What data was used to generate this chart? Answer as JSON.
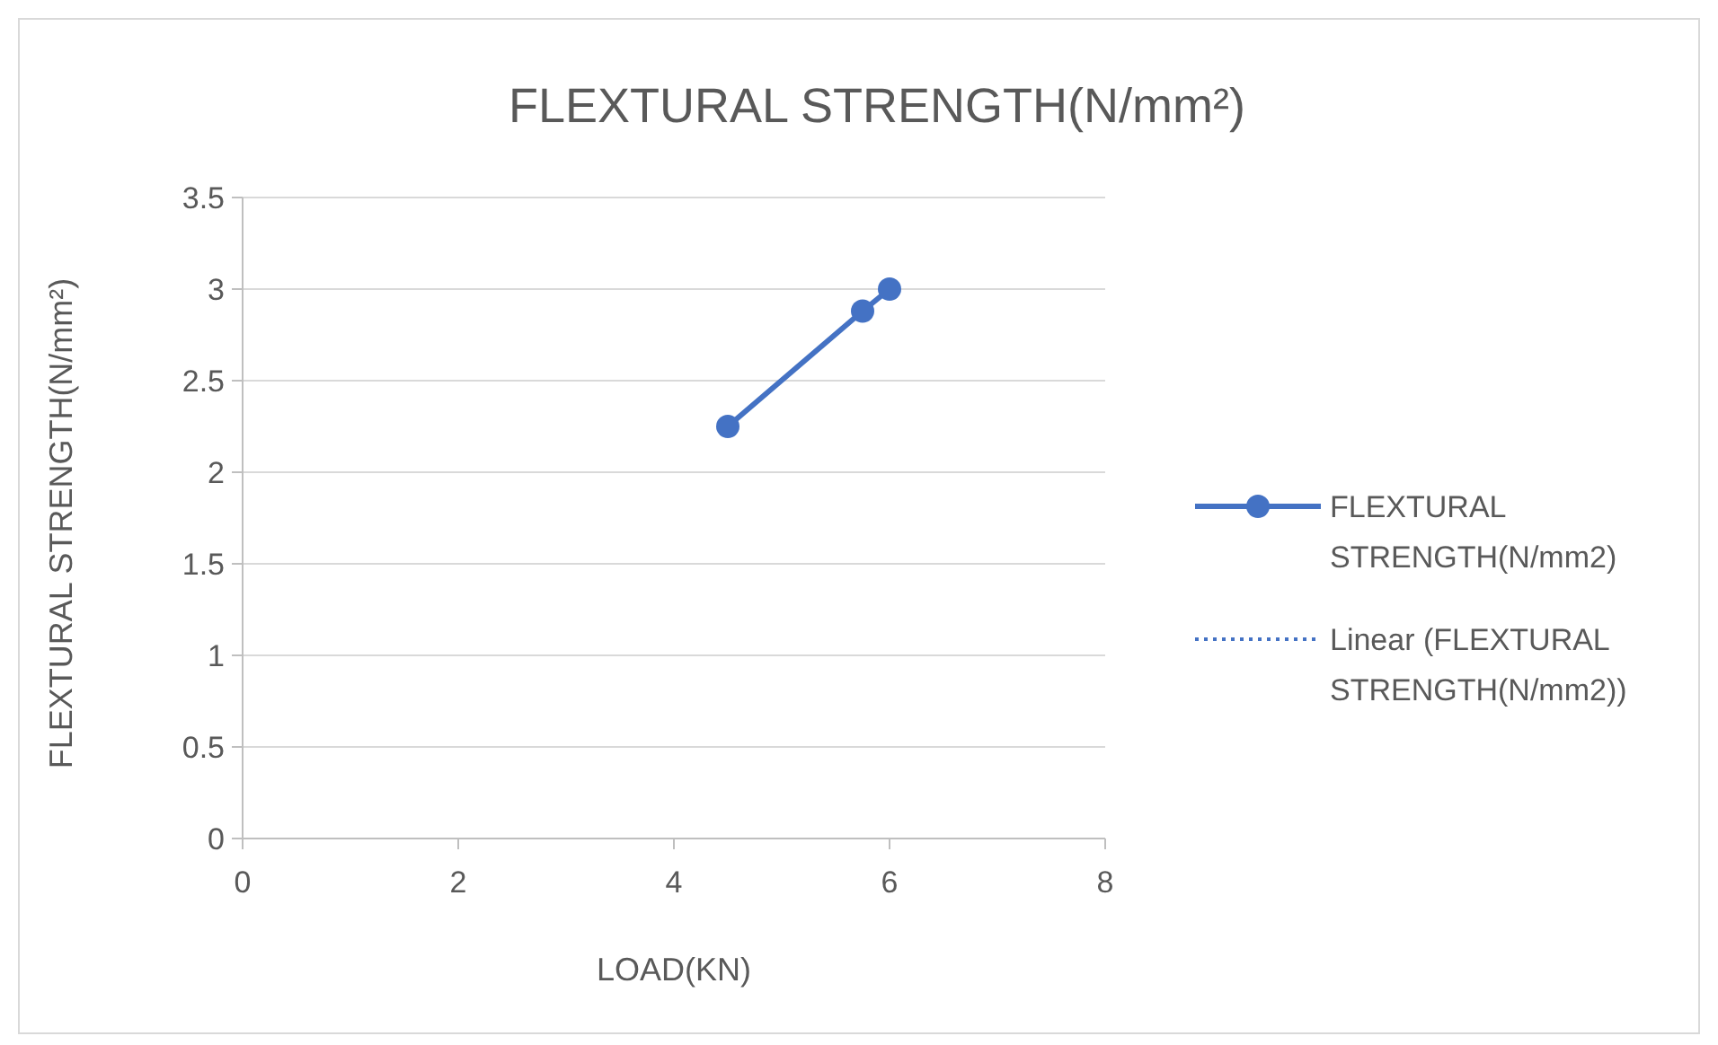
{
  "chart_data": {
    "type": "line",
    "title": "FLEXTURAL STRENGTH(N/mm²)",
    "xlabel": "LOAD(KN)",
    "ylabel": "FLEXTURAL STRENGTH(N/mm²)",
    "series": [
      {
        "name": "FLEXTURAL STRENGTH(N/mm2)",
        "color": "#4472c4",
        "x": [
          4.5,
          5.75,
          6
        ],
        "values": [
          2.25,
          2.88,
          3
        ],
        "marker": "circle",
        "line_style": "solid"
      },
      {
        "name": "Linear (FLEXTURAL STRENGTH(N/mm2))",
        "color": "#4472c4",
        "values": [
          null,
          null
        ],
        "marker": "none",
        "line_style": "dotted"
      }
    ],
    "xlim": [
      0,
      8
    ],
    "xticks": [
      0,
      2,
      4,
      6,
      8
    ],
    "ylim": [
      0,
      3.5
    ],
    "yticks": [
      0,
      0.5,
      1,
      1.5,
      2,
      2.5,
      3,
      3.5
    ],
    "grid": "y",
    "legend": "right"
  }
}
